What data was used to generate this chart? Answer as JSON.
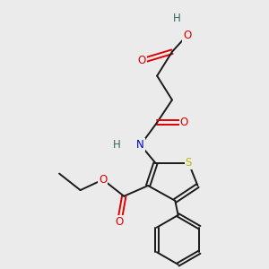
{
  "background_color": "#ebebeb",
  "bond_color": "#1a1a1a",
  "atom_colors": {
    "O": "#dd0000",
    "N": "#0000cc",
    "S": "#bbbb00",
    "H": "#336666",
    "C": "#1a1a1a"
  },
  "figsize": [
    3.0,
    3.0
  ],
  "dpi": 100
}
